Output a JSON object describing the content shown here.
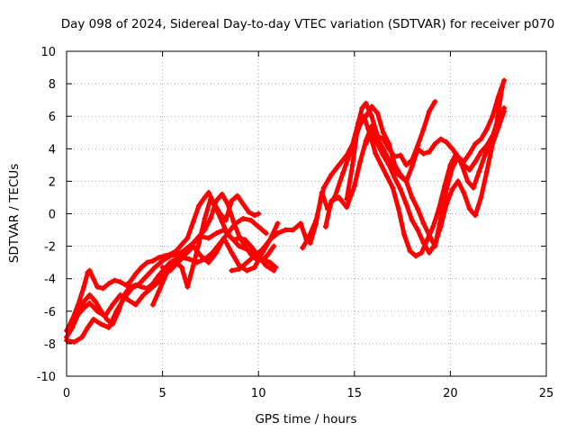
{
  "chart_data": {
    "type": "scatter",
    "title": "Day 098 of 2024, Sidereal Day-to-day VTEC variation (SDTVAR) for receiver p070",
    "xlabel": "GPS time / hours",
    "ylabel": "SDTVAR / TECUs",
    "xlim": [
      0,
      25
    ],
    "ylim": [
      -10,
      10
    ],
    "xticks": [
      0,
      5,
      10,
      15,
      20,
      25
    ],
    "yticks": [
      -10,
      -8,
      -6,
      -4,
      -2,
      0,
      2,
      4,
      6,
      8,
      10
    ],
    "grid": true,
    "marker": "plus",
    "color": "#ff0000",
    "series": [
      {
        "x": [
          0.0,
          0.3,
          0.6,
          0.9,
          1.1,
          1.2,
          1.4,
          1.6,
          1.9,
          2.2,
          2.5,
          2.8,
          3.1,
          3.3,
          3.6,
          3.9,
          4.2,
          4.5,
          4.8,
          5.1,
          5.4,
          5.7,
          6.0,
          6.3,
          6.6,
          6.9,
          7.2,
          7.4,
          7.7,
          8.0,
          8.3,
          8.6,
          8.9,
          9.2,
          9.5,
          9.8,
          10.0
        ],
        "y": [
          -7.2,
          -6.5,
          -5.6,
          -4.5,
          -3.6,
          -3.5,
          -4.0,
          -4.5,
          -4.6,
          -4.3,
          -4.1,
          -4.2,
          -4.4,
          -4.2,
          -3.7,
          -3.3,
          -3.0,
          -2.9,
          -2.7,
          -2.6,
          -2.5,
          -2.3,
          -1.9,
          -1.5,
          -0.5,
          0.5,
          1.0,
          1.3,
          0.6,
          0.0,
          -0.4,
          0.8,
          1.1,
          0.6,
          0.1,
          -0.1,
          0.0
        ]
      },
      {
        "x": [
          0.0,
          0.3,
          0.6,
          0.9,
          1.2,
          1.5,
          1.8,
          2.1,
          2.4,
          2.7,
          3.0,
          3.3,
          3.6,
          3.9,
          4.2,
          4.5,
          4.8,
          5.1,
          5.4,
          5.7,
          6.0,
          6.3,
          6.6,
          6.9,
          7.2,
          7.5,
          7.8,
          8.1,
          8.4,
          8.7,
          9.0,
          9.3,
          9.6,
          9.9,
          10.2,
          10.5,
          10.8
        ],
        "y": [
          -7.6,
          -7.0,
          -6.2,
          -5.4,
          -5.0,
          -5.4,
          -6.0,
          -6.5,
          -6.8,
          -6.0,
          -5.0,
          -4.5,
          -4.4,
          -4.5,
          -4.6,
          -4.3,
          -3.8,
          -3.4,
          -3.0,
          -2.8,
          -2.6,
          -2.2,
          -1.8,
          -1.4,
          -1.0,
          -0.3,
          0.8,
          1.2,
          0.6,
          -0.5,
          -1.4,
          -2.0,
          -2.5,
          -2.8,
          -2.9,
          -2.5,
          -2.0
        ]
      },
      {
        "x": [
          0.0,
          0.4,
          0.8,
          1.1,
          1.4,
          1.8,
          2.2,
          2.6,
          3.0,
          3.4,
          3.8,
          4.2,
          4.6,
          5.0,
          5.4,
          5.8,
          6.2,
          6.6,
          7.0,
          7.4,
          7.8,
          8.2,
          8.6,
          9.0,
          9.4,
          9.8,
          10.2,
          10.6,
          10.9
        ],
        "y": [
          -7.8,
          -7.9,
          -7.6,
          -7.0,
          -6.5,
          -6.8,
          -7.0,
          -6.0,
          -5.2,
          -4.6,
          -4.3,
          -3.8,
          -3.3,
          -2.9,
          -2.6,
          -2.5,
          -2.2,
          -1.8,
          -1.4,
          -1.5,
          -1.2,
          -1.0,
          -1.5,
          -2.0,
          -2.2,
          -2.5,
          -2.8,
          -3.0,
          -3.3
        ]
      },
      {
        "x": [
          0.3,
          0.6,
          0.9,
          1.2,
          1.6,
          2.0,
          2.4,
          2.8,
          3.2,
          3.6,
          4.0,
          4.4,
          4.8,
          5.2,
          5.6,
          6.0,
          6.4,
          6.8,
          7.2,
          7.6,
          8.0,
          8.4,
          8.8,
          9.2,
          9.6,
          10.0,
          10.4
        ],
        "y": [
          -6.8,
          -6.2,
          -5.8,
          -5.5,
          -6.0,
          -6.3,
          -5.6,
          -5.0,
          -5.3,
          -5.6,
          -5.0,
          -4.6,
          -4.2,
          -3.6,
          -3.0,
          -2.7,
          -2.8,
          -3.0,
          -2.8,
          -2.4,
          -1.8,
          -1.2,
          -0.6,
          -0.3,
          -0.4,
          -0.8,
          -1.2
        ]
      },
      {
        "x": [
          4.5,
          4.8,
          5.2,
          5.6,
          6.0,
          6.3,
          6.6,
          6.9,
          7.2,
          7.5,
          7.8,
          8.1,
          8.4,
          8.7,
          9.0,
          9.3,
          9.6,
          10.0,
          10.4,
          10.8
        ],
        "y": [
          -5.6,
          -4.8,
          -3.7,
          -2.9,
          -3.3,
          -4.5,
          -3.2,
          -1.8,
          -0.3,
          0.9,
          0.3,
          -0.5,
          -1.3,
          -1.6,
          -1.5,
          -1.6,
          -2.0,
          -2.6,
          -3.2,
          -3.5
        ]
      },
      {
        "x": [
          5.0,
          5.4,
          5.8,
          6.2,
          6.6,
          7.0,
          7.4,
          7.8,
          8.2,
          8.6,
          9.0,
          9.4,
          9.8,
          10.2,
          10.6,
          11.0
        ],
        "y": [
          -3.3,
          -3.5,
          -3.0,
          -2.5,
          -2.0,
          -2.6,
          -3.0,
          -2.4,
          -1.5,
          -2.4,
          -3.2,
          -3.5,
          -3.3,
          -2.4,
          -1.6,
          -0.6
        ]
      },
      {
        "x": [
          8.6,
          9.0,
          9.4,
          9.8,
          10.2,
          10.6,
          11.0,
          11.4,
          11.8,
          12.2,
          12.5,
          12.7,
          13.0,
          13.3,
          13.6,
          14.0,
          14.4,
          14.8,
          15.2,
          15.4,
          15.6,
          15.9,
          16.2,
          16.5,
          16.8,
          17.1,
          17.4,
          17.7,
          18.0,
          18.3,
          18.6,
          18.9,
          19.2
        ],
        "y": [
          -3.5,
          -3.4,
          -3.0,
          -2.6,
          -2.2,
          -1.6,
          -1.2,
          -1.0,
          -1.0,
          -0.6,
          -1.6,
          -1.8,
          -0.6,
          1.3,
          0.3,
          1.1,
          2.5,
          3.8,
          5.6,
          6.5,
          6.8,
          6.0,
          4.8,
          4.6,
          4.0,
          3.5,
          3.6,
          3.0,
          3.3,
          4.2,
          5.2,
          6.3,
          6.9
        ]
      },
      {
        "x": [
          12.3,
          12.6,
          13.0,
          13.4,
          13.8,
          14.2,
          14.6,
          15.0,
          15.3,
          15.6,
          15.9,
          16.2,
          16.5,
          16.8,
          17.1,
          17.4,
          17.7,
          18.0,
          18.3,
          18.6,
          18.9,
          19.2,
          19.5,
          19.8,
          20.1,
          20.4,
          20.7,
          21.0,
          21.3,
          21.6,
          21.9,
          22.2,
          22.5,
          22.8
        ],
        "y": [
          -2.1,
          -1.5,
          -0.4,
          1.6,
          2.4,
          3.0,
          3.6,
          4.5,
          5.5,
          6.0,
          6.6,
          6.2,
          5.0,
          4.3,
          3.0,
          2.4,
          2.0,
          2.9,
          4.0,
          3.7,
          3.8,
          4.3,
          4.6,
          4.4,
          4.0,
          3.5,
          3.2,
          3.7,
          4.3,
          4.6,
          5.2,
          6.0,
          7.2,
          8.2
        ]
      },
      {
        "x": [
          13.5,
          13.8,
          14.2,
          14.6,
          15.0,
          15.3,
          15.6,
          15.9,
          16.2,
          16.5,
          16.8,
          17.1,
          17.4,
          17.7,
          18.0,
          18.3,
          18.6,
          18.9,
          19.2,
          19.5,
          19.8,
          20.1,
          20.4,
          20.7,
          21.0,
          21.3,
          21.6,
          21.9,
          22.2,
          22.5,
          22.8
        ],
        "y": [
          -0.8,
          0.8,
          1.0,
          0.4,
          1.7,
          3.2,
          4.5,
          5.4,
          4.6,
          4.0,
          3.3,
          2.6,
          2.3,
          2.0,
          1.0,
          0.3,
          -0.6,
          -1.3,
          -2.0,
          -0.3,
          1.5,
          2.8,
          3.5,
          3.0,
          2.7,
          3.2,
          3.8,
          4.2,
          4.8,
          5.6,
          6.5
        ]
      },
      {
        "x": [
          14.6,
          14.9,
          15.2,
          15.5,
          15.8,
          16.1,
          16.4,
          16.7,
          17.0,
          17.3,
          17.6,
          17.9,
          18.2,
          18.5,
          18.8,
          19.1,
          19.4,
          19.7,
          20.0,
          20.3,
          20.6,
          20.9,
          21.2,
          21.5,
          21.8,
          22.1,
          22.4,
          22.7
        ],
        "y": [
          0.9,
          3.0,
          5.6,
          6.0,
          4.9,
          3.7,
          3.0,
          2.3,
          1.6,
          0.3,
          -1.3,
          -2.3,
          -2.6,
          -2.4,
          -1.6,
          -0.8,
          0.3,
          1.7,
          3.0,
          3.7,
          3.0,
          2.0,
          1.6,
          2.6,
          3.6,
          4.4,
          5.5,
          7.8
        ]
      },
      {
        "x": [
          15.6,
          15.9,
          16.2,
          16.5,
          16.8,
          17.1,
          17.4,
          17.7,
          18.0,
          18.3,
          18.6,
          18.9,
          19.2,
          19.5,
          19.8,
          20.1,
          20.4,
          20.7,
          21.0,
          21.3,
          21.6,
          21.9,
          22.2,
          22.5,
          22.8
        ],
        "y": [
          4.3,
          5.0,
          4.3,
          3.6,
          3.0,
          2.2,
          1.5,
          0.6,
          -0.4,
          -1.0,
          -1.8,
          -2.4,
          -1.9,
          -0.8,
          0.6,
          1.5,
          2.0,
          1.3,
          0.3,
          -0.1,
          1.0,
          2.6,
          4.3,
          5.3,
          6.3
        ]
      }
    ]
  }
}
